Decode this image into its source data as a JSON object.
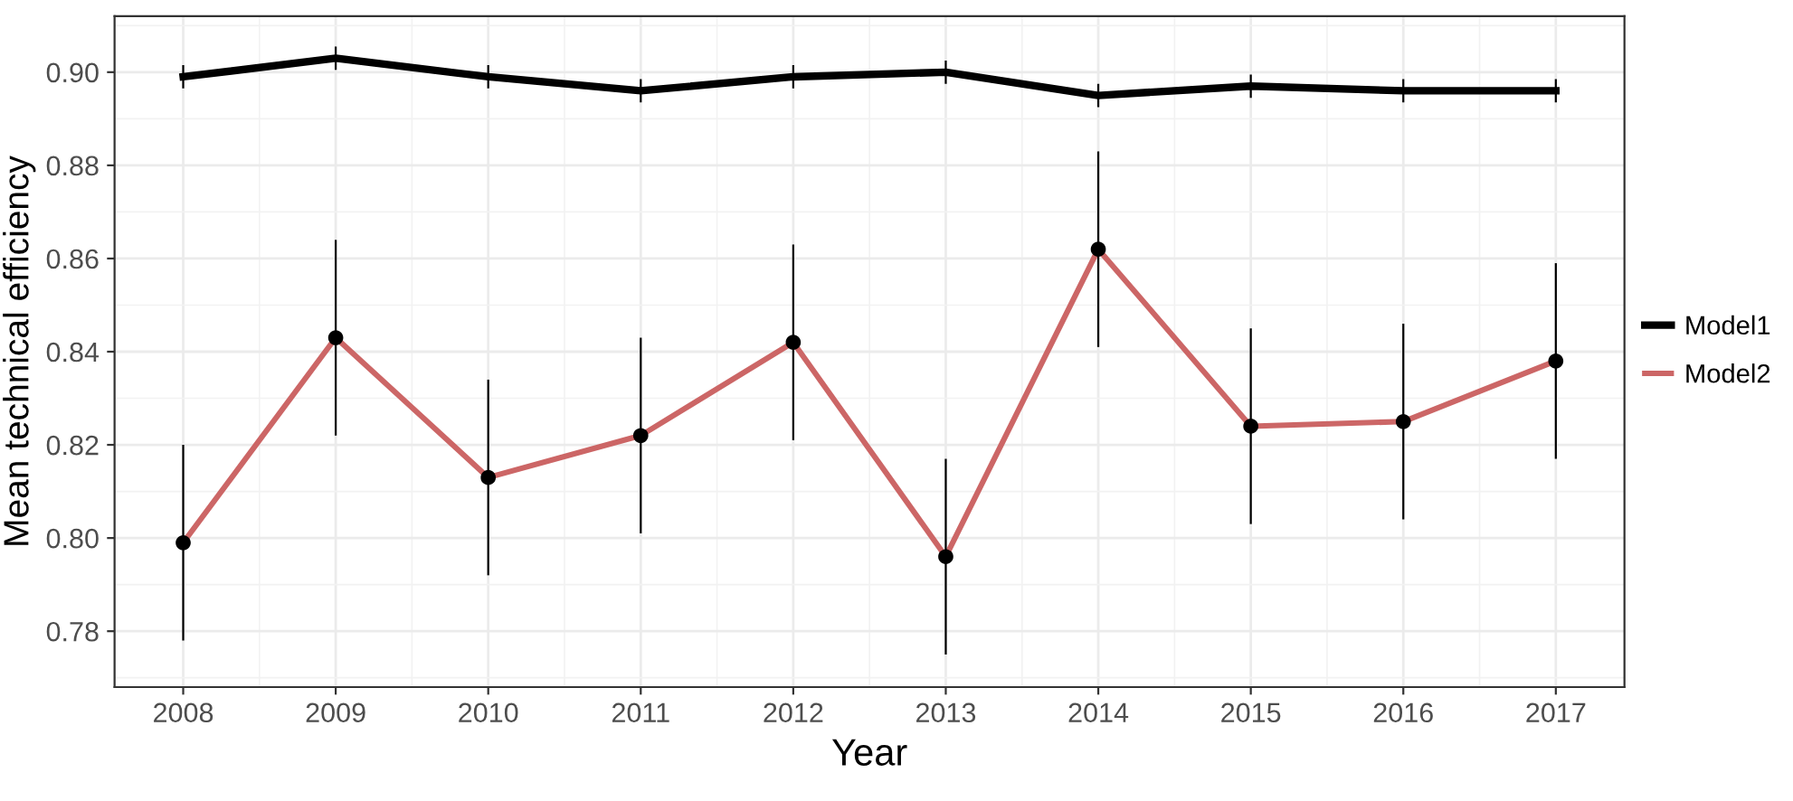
{
  "chart_data": {
    "type": "line",
    "xlabel": "Year",
    "ylabel": "Mean technical efficiency",
    "x": [
      2008,
      2009,
      2010,
      2011,
      2012,
      2013,
      2014,
      2015,
      2016,
      2017
    ],
    "xlim": [
      2007.55,
      2017.45
    ],
    "ylim": [
      0.768,
      0.912
    ],
    "xticks": [
      2008,
      2009,
      2010,
      2011,
      2012,
      2013,
      2014,
      2015,
      2016,
      2017,
      {
        "value": 2008.5,
        "label": null
      },
      {
        "value": 2009.5,
        "label": null
      },
      {
        "value": 2010.5,
        "label": null
      },
      {
        "value": 2011.5,
        "label": null
      },
      {
        "value": 2012.5,
        "label": null
      },
      {
        "value": 2013.5,
        "label": null
      },
      {
        "value": 2014.5,
        "label": null
      },
      {
        "value": 2015.5,
        "label": null
      },
      {
        "value": 2016.5,
        "label": null
      }
    ],
    "yticks": [
      {
        "value": 0.78,
        "label": "0.78"
      },
      {
        "value": 0.8,
        "label": "0.80"
      },
      {
        "value": 0.82,
        "label": "0.82"
      },
      {
        "value": 0.84,
        "label": "0.84"
      },
      {
        "value": 0.86,
        "label": "0.86"
      },
      {
        "value": 0.88,
        "label": "0.88"
      },
      {
        "value": 0.9,
        "label": "0.90"
      },
      {
        "value": 0.77,
        "label": null
      },
      {
        "value": 0.79,
        "label": null
      },
      {
        "value": 0.81,
        "label": null
      },
      {
        "value": 0.83,
        "label": null
      },
      {
        "value": 0.85,
        "label": null
      },
      {
        "value": 0.87,
        "label": null
      },
      {
        "value": 0.89,
        "label": null
      },
      {
        "value": 0.91,
        "label": null
      }
    ],
    "grid": true,
    "legend": "right",
    "series": [
      {
        "name": "Model1",
        "color": "#000000",
        "values": [
          0.899,
          0.903,
          0.899,
          0.896,
          0.899,
          0.9,
          0.895,
          0.897,
          0.896,
          0.896
        ],
        "errors": [
          0.0025,
          0.0025,
          0.0025,
          0.0025,
          0.0025,
          0.0025,
          0.0025,
          0.0025,
          0.0025,
          0.0025
        ]
      },
      {
        "name": "Model2",
        "color": "#cc6666",
        "values": [
          0.799,
          0.843,
          0.813,
          0.822,
          0.842,
          0.796,
          0.862,
          0.824,
          0.825,
          0.838
        ]
      },
      {
        "type": "scatter",
        "color": "#000000",
        "marker": "circle",
        "values": [
          0.799,
          0.843,
          0.813,
          0.822,
          0.842,
          0.796,
          0.862,
          0.824,
          0.825,
          0.838
        ],
        "errors": [
          0.021,
          0.021,
          0.021,
          0.021,
          0.021,
          0.021,
          0.021,
          0.021,
          0.021,
          0.021
        ]
      }
    ]
  }
}
